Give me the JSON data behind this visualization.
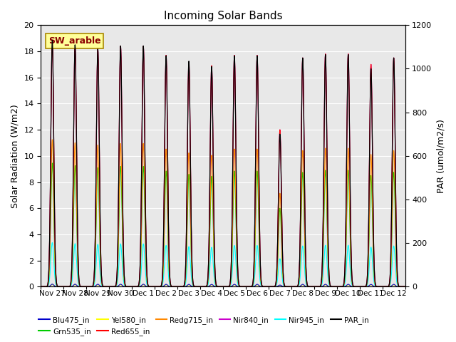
{
  "title": "Incoming Solar Bands",
  "ylabel_left": "Solar Radiation (W/m2)",
  "ylabel_right": "PAR (umol/m2/s)",
  "annotation": "SW_arable",
  "annotation_color": "#8B0000",
  "annotation_bg": "#FFFF99",
  "ylim_left": [
    0,
    20
  ],
  "ylim_right": [
    0,
    1200
  ],
  "series": {
    "Blu475_in": {
      "color": "#0000CC",
      "label": "Blu475_in"
    },
    "Grn535_in": {
      "color": "#00CC00",
      "label": "Grn535_in"
    },
    "Yel580_in": {
      "color": "#FFFF00",
      "label": "Yel580_in"
    },
    "Red655_in": {
      "color": "#FF0000",
      "label": "Red655_in"
    },
    "Redg715_in": {
      "color": "#FF8800",
      "label": "Redg715_in"
    },
    "Nir840_in": {
      "color": "#CC00CC",
      "label": "Nir840_in"
    },
    "Nir945_in": {
      "color": "#00FFFF",
      "label": "Nir945_in"
    },
    "PAR_in": {
      "color": "#000000",
      "label": "PAR_in"
    }
  },
  "day_peaks": [
    18.9,
    18.5,
    18.2,
    18.4,
    18.4,
    17.7,
    17.2,
    16.9,
    17.7,
    17.7,
    12.0,
    17.5,
    17.8,
    17.8,
    17.0,
    17.5
  ],
  "par_peaks": [
    1130,
    1110,
    1090,
    1105,
    1105,
    1060,
    1035,
    1010,
    1060,
    1060,
    700,
    1050,
    1065,
    1065,
    1000,
    1050
  ],
  "rel_scales": {
    "Blu475_in": 0.01,
    "Grn535_in": 0.5,
    "Yel580_in": 0.008,
    "Red655_in": 1.0,
    "Redg715_in": 0.595,
    "Nir840_in": 1.0,
    "Nir945_in": 0.178
  },
  "sigma": 0.065,
  "n_days": 16,
  "background_color": "#E8E8E8",
  "xtick_labels": [
    "Nov 27",
    "Nov 28",
    "Nov 29",
    "Nov 30",
    "Dec 1",
    "Dec 2",
    "Dec 3",
    "Dec 4",
    "Dec 5",
    "Dec 6",
    "Dec 7",
    "Dec 8",
    "Dec 9",
    "Dec 10",
    "Dec 11",
    "Dec 12"
  ],
  "yticks_left": [
    0,
    2,
    4,
    6,
    8,
    10,
    12,
    14,
    16,
    18,
    20
  ],
  "yticks_right": [
    0,
    200,
    400,
    600,
    800,
    1000,
    1200
  ]
}
